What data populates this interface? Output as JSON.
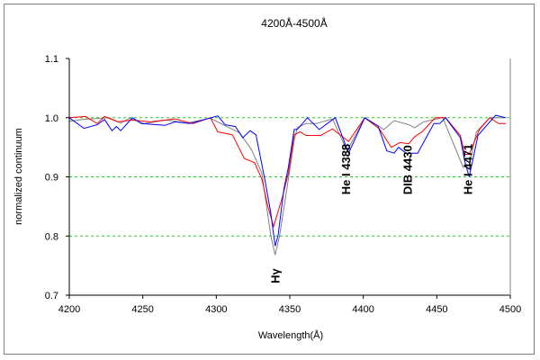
{
  "chart_data": {
    "type": "line",
    "title": "4200Å-4500Å",
    "xlabel": "Wavelength(Å)",
    "ylabel": "normalized continuum",
    "xlim": [
      4200,
      4500
    ],
    "ylim": [
      0.7,
      1.1
    ],
    "xticks": [
      4200,
      4250,
      4300,
      4350,
      4400,
      4450,
      4500
    ],
    "yticks": [
      "0.7",
      "0.8",
      "0.9",
      "1.0",
      "1.1"
    ],
    "grid": true,
    "gridlines": [
      0.8,
      0.9,
      1.0
    ],
    "annotations": [
      {
        "text": "Hγ",
        "x": 4340,
        "y": 0.72
      },
      {
        "text": "He I 4388",
        "x": 4388,
        "y": 0.87
      },
      {
        "text": "DIB 4430",
        "x": 4430,
        "y": 0.87
      },
      {
        "text": "He I 4471",
        "x": 4471,
        "y": 0.87
      }
    ],
    "series": [
      {
        "name": "gray",
        "color": "#808080",
        "x": [
          4200,
          4209,
          4227,
          4235,
          4241,
          4251,
          4266,
          4280,
          4296,
          4304,
          4316,
          4324,
          4331,
          4337,
          4340,
          4343,
          4349,
          4353,
          4355,
          4361,
          4368,
          4379,
          4389,
          4401,
          4414,
          4421,
          4431,
          4435,
          4441,
          4454,
          4468,
          4472,
          4477,
          4486,
          4497
        ],
        "y": [
          0.994,
          0.997,
          1.0,
          0.991,
          0.999,
          0.99,
          0.996,
          0.991,
          0.999,
          0.989,
          0.974,
          0.946,
          0.906,
          0.801,
          0.768,
          0.8,
          0.896,
          0.961,
          0.983,
          0.99,
          0.99,
          0.998,
          0.944,
          1.0,
          0.98,
          0.995,
          0.988,
          0.983,
          0.993,
          1.0,
          0.916,
          0.92,
          0.976,
          1.0,
          1.0
        ]
      },
      {
        "name": "red",
        "color": "#ff0000",
        "x": [
          4200,
          4211,
          4219,
          4224,
          4233,
          4243,
          4255,
          4272,
          4284,
          4296,
          4301,
          4311,
          4319,
          4326,
          4331,
          4335,
          4339,
          4345,
          4349,
          4353,
          4357,
          4361,
          4371,
          4379,
          4390,
          4401,
          4411,
          4419,
          4425,
          4431,
          4435,
          4440,
          4449,
          4456,
          4466,
          4469,
          4472,
          4479,
          4486,
          4492,
          4497
        ],
        "y": [
          1.0,
          1.002,
          0.99,
          1.002,
          0.993,
          0.996,
          0.993,
          0.998,
          0.99,
          1.0,
          0.976,
          0.971,
          0.931,
          0.924,
          0.896,
          0.851,
          0.816,
          0.866,
          0.906,
          0.971,
          0.976,
          0.97,
          0.97,
          0.981,
          0.96,
          1.0,
          0.981,
          0.95,
          0.958,
          0.956,
          0.968,
          0.976,
          1.0,
          1.0,
          0.97,
          0.938,
          0.938,
          0.98,
          1.0,
          0.99,
          0.99
        ]
      },
      {
        "name": "blue",
        "color": "#0000ff",
        "x": [
          4200,
          4210,
          4219,
          4224,
          4229,
          4232,
          4235,
          4243,
          4249,
          4265,
          4272,
          4282,
          4301,
          4306,
          4313,
          4318,
          4323,
          4327,
          4333,
          4337,
          4340,
          4342,
          4346,
          4349,
          4353,
          4355,
          4362,
          4370,
          4381,
          4390,
          4401,
          4410,
          4416,
          4421,
          4424,
          4429,
          4437,
          4448,
          4452,
          4456,
          4466,
          4469,
          4472,
          4478,
          4485,
          4490,
          4497
        ],
        "y": [
          1.0,
          0.982,
          0.988,
          0.997,
          0.978,
          0.985,
          0.978,
          1.0,
          0.99,
          0.987,
          0.993,
          0.99,
          1.003,
          0.988,
          0.985,
          0.966,
          0.978,
          0.971,
          0.896,
          0.84,
          0.783,
          0.8,
          0.88,
          0.916,
          0.98,
          0.98,
          1.0,
          0.98,
          1.0,
          0.94,
          1.0,
          0.986,
          0.944,
          0.94,
          0.95,
          0.94,
          0.94,
          0.99,
          0.99,
          1.0,
          0.966,
          0.926,
          0.9,
          0.97,
          0.99,
          1.004,
          1.0
        ]
      }
    ]
  }
}
